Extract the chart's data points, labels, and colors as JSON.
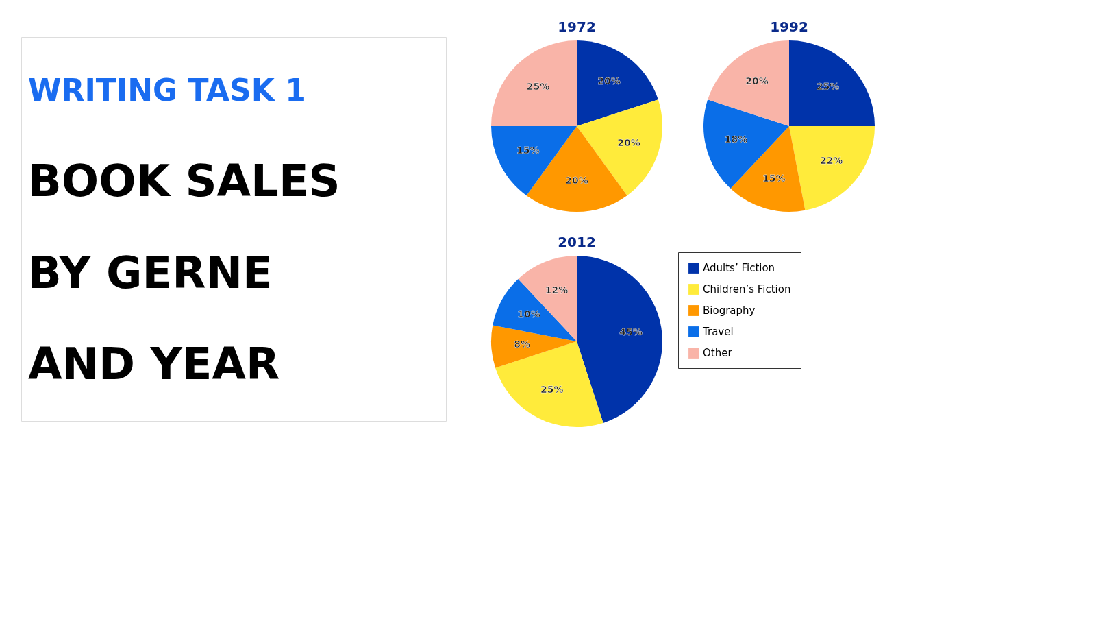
{
  "chart_data": [
    {
      "type": "other",
      "subtitle": "WRITING TASK 1",
      "title": "BOOK SALES BY GERNE AND YEAR"
    },
    {
      "type": "pie",
      "title": "1972",
      "categories": [
        null,
        null,
        null,
        null,
        null
      ],
      "values": [
        20,
        20,
        20,
        15,
        25
      ],
      "value_labels": [
        "20%",
        "20%",
        "20%",
        "15%",
        "25%"
      ],
      "colors": [
        "#0033aa",
        "#ffeb3b",
        "#ff9800",
        "#0a6ee8",
        "#f9b4a8"
      ]
    },
    {
      "type": "pie",
      "title": "1992",
      "categories": [
        null,
        null,
        null,
        null,
        null
      ],
      "values": [
        25,
        22,
        15,
        18,
        20
      ],
      "value_labels": [
        "25%",
        "22%",
        "15%",
        "18%",
        "20%"
      ],
      "colors": [
        "#0033aa",
        "#ffeb3b",
        "#ff9800",
        "#0a6ee8",
        "#f9b4a8"
      ]
    },
    {
      "type": "pie",
      "title": "2012",
      "categories": [
        "Adults’ Fiction",
        "Children’s Fiction",
        "Biography",
        "Travel",
        "Other"
      ],
      "values": [
        45,
        25,
        8,
        10,
        12
      ],
      "value_labels": [
        "45%",
        "25%",
        "8%",
        "10%",
        "12%"
      ],
      "colors": [
        "#0033aa",
        "#ffeb3b",
        "#ff9800",
        "#0a6ee8",
        "#f9b4a8"
      ],
      "legend": "right"
    }
  ]
}
